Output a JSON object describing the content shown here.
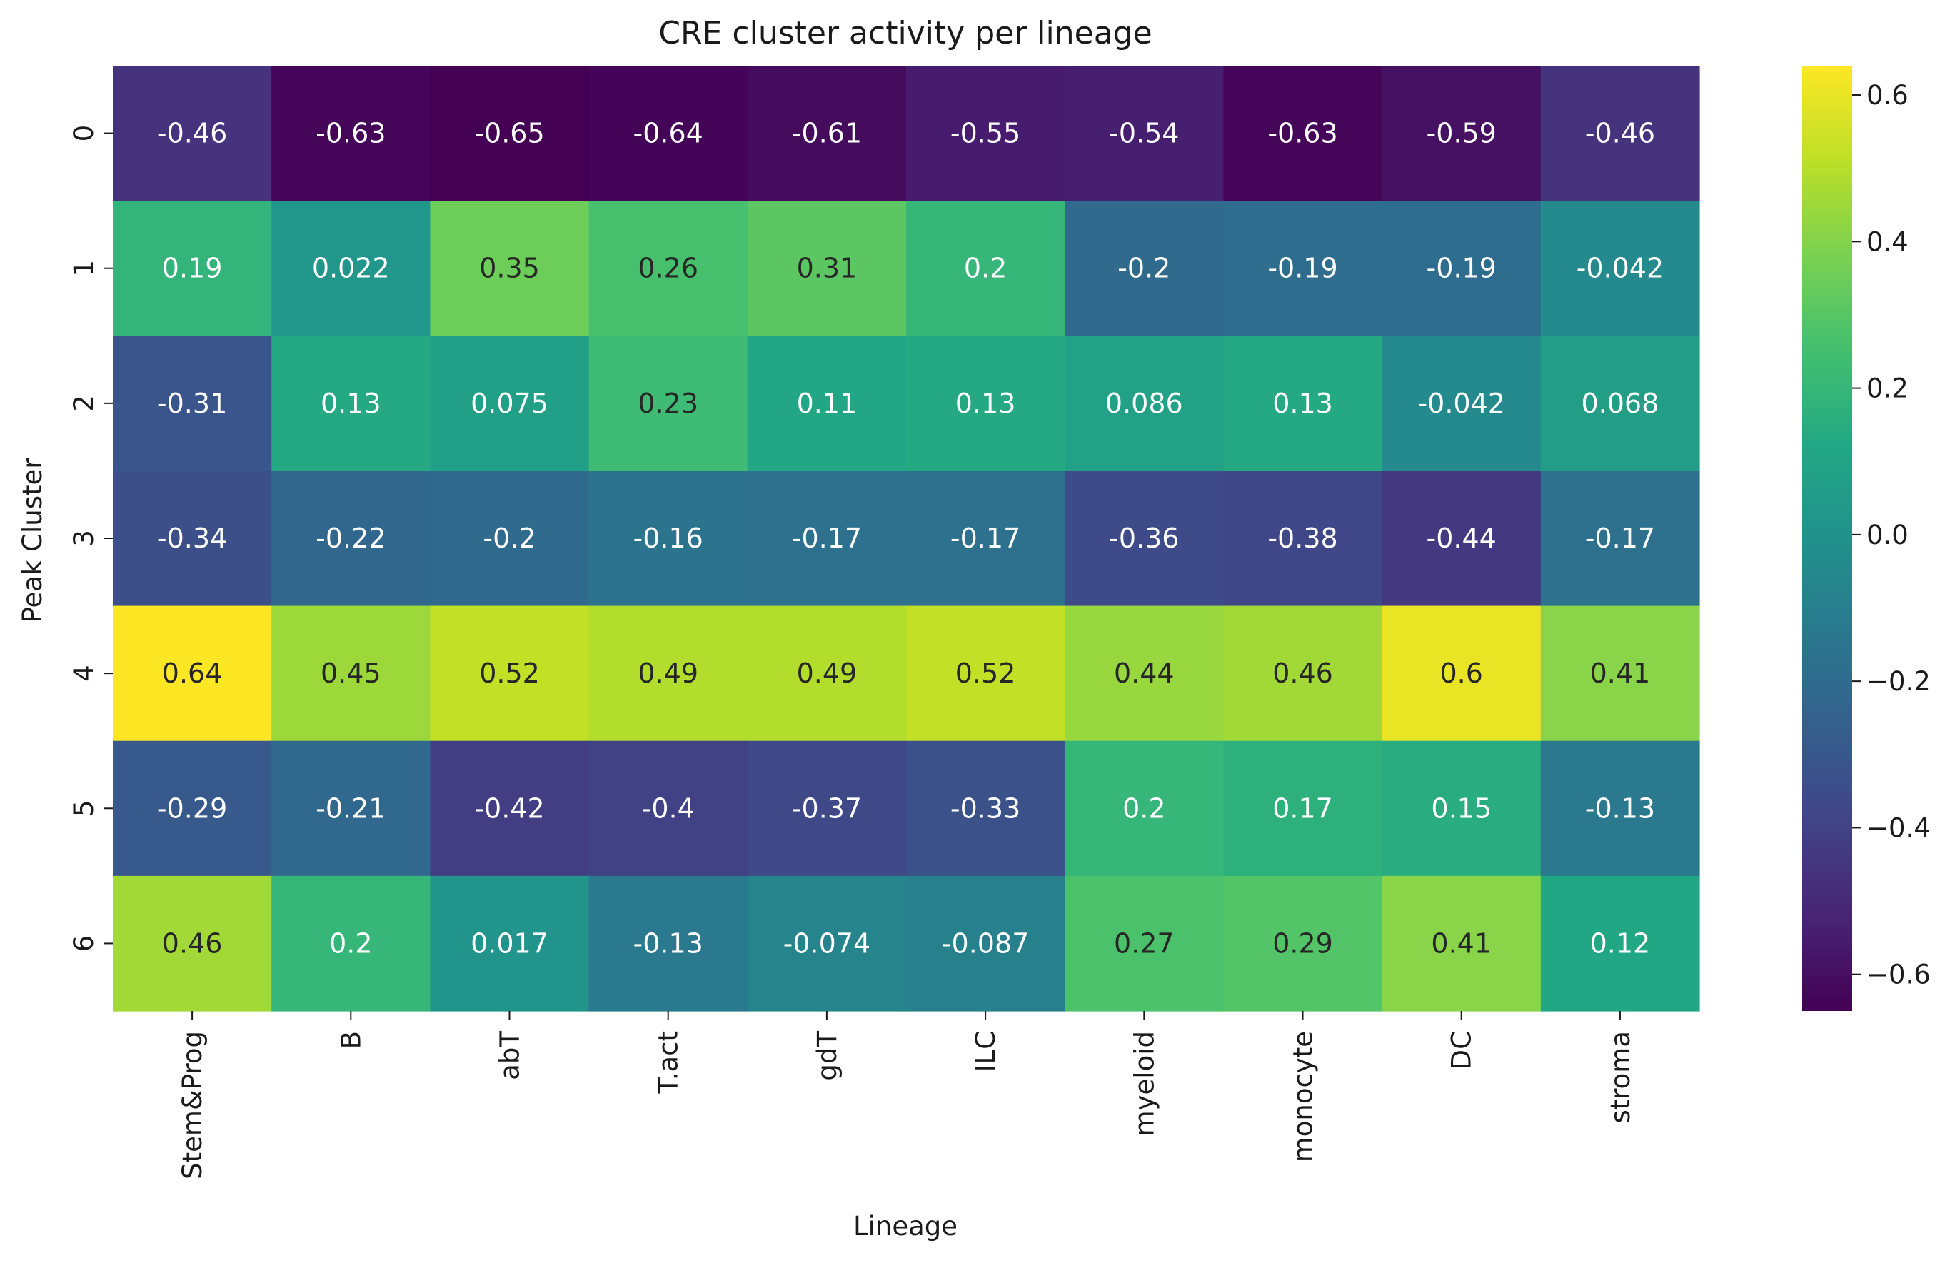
{
  "chart_data": {
    "type": "heatmap",
    "title": "CRE cluster activity per lineage",
    "xlabel": "Lineage",
    "ylabel": "Peak Cluster",
    "x_categories": [
      "Stem&Prog",
      "B",
      "abT",
      "T.act",
      "gdT",
      "ILC",
      "myeloid",
      "monocyte",
      "DC",
      "stroma"
    ],
    "y_categories": [
      "0",
      "1",
      "2",
      "3",
      "4",
      "5",
      "6"
    ],
    "values": [
      [
        -0.46,
        -0.63,
        -0.65,
        -0.64,
        -0.61,
        -0.55,
        -0.54,
        -0.63,
        -0.59,
        -0.46
      ],
      [
        0.19,
        0.022,
        0.35,
        0.26,
        0.31,
        0.2,
        -0.2,
        -0.19,
        -0.19,
        -0.042
      ],
      [
        -0.31,
        0.13,
        0.075,
        0.23,
        0.11,
        0.13,
        0.086,
        0.13,
        -0.042,
        0.068
      ],
      [
        -0.34,
        -0.22,
        -0.2,
        -0.16,
        -0.17,
        -0.17,
        -0.36,
        -0.38,
        -0.44,
        -0.17
      ],
      [
        0.64,
        0.45,
        0.52,
        0.49,
        0.49,
        0.52,
        0.44,
        0.46,
        0.6,
        0.41
      ],
      [
        -0.29,
        -0.21,
        -0.42,
        -0.4,
        -0.37,
        -0.33,
        0.2,
        0.17,
        0.15,
        -0.13
      ],
      [
        0.46,
        0.2,
        0.017,
        -0.13,
        -0.074,
        -0.087,
        0.27,
        0.29,
        0.41,
        0.12
      ]
    ],
    "cell_labels": [
      [
        "-0.46",
        "-0.63",
        "-0.65",
        "-0.64",
        "-0.61",
        "-0.55",
        "-0.54",
        "-0.63",
        "-0.59",
        "-0.46"
      ],
      [
        "0.19",
        "0.022",
        "0.35",
        "0.26",
        "0.31",
        "0.2",
        "-0.2",
        "-0.19",
        "-0.19",
        "-0.042"
      ],
      [
        "-0.31",
        "0.13",
        "0.075",
        "0.23",
        "0.11",
        "0.13",
        "0.086",
        "0.13",
        "-0.042",
        "0.068"
      ],
      [
        "-0.34",
        "-0.22",
        "-0.2",
        "-0.16",
        "-0.17",
        "-0.17",
        "-0.36",
        "-0.38",
        "-0.44",
        "-0.17"
      ],
      [
        "0.64",
        "0.45",
        "0.52",
        "0.49",
        "0.49",
        "0.52",
        "0.44",
        "0.46",
        "0.6",
        "0.41"
      ],
      [
        "-0.29",
        "-0.21",
        "-0.42",
        "-0.4",
        "-0.37",
        "-0.33",
        "0.2",
        "0.17",
        "0.15",
        "-0.13"
      ],
      [
        "0.46",
        "0.2",
        "0.017",
        "-0.13",
        "-0.074",
        "-0.087",
        "0.27",
        "0.29",
        "0.41",
        "0.12"
      ]
    ],
    "colormap": "viridis",
    "vmin": -0.65,
    "vmax": 0.64,
    "colorbar_ticks": [
      0.6,
      0.4,
      0.2,
      0.0,
      -0.2,
      -0.4,
      -0.6
    ],
    "colorbar_tick_labels": [
      "0.6",
      "0.4",
      "0.2",
      "0.0",
      "−0.2",
      "−0.4",
      "−0.6"
    ],
    "legend": "colorbar right",
    "grid": false
  }
}
